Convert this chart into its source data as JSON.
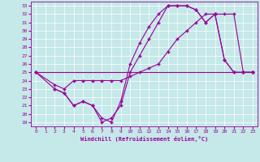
{
  "xlabel": "Windchill (Refroidissement éolien,°C)",
  "background_color": "#c5e8e8",
  "line_color": "#990099",
  "xlim": [
    -0.5,
    23.5
  ],
  "ylim": [
    18.5,
    33.5
  ],
  "yticks": [
    19,
    20,
    21,
    22,
    23,
    24,
    25,
    26,
    27,
    28,
    29,
    30,
    31,
    32,
    33
  ],
  "xticks": [
    0,
    1,
    2,
    3,
    4,
    5,
    6,
    7,
    8,
    9,
    10,
    11,
    12,
    13,
    14,
    15,
    16,
    17,
    18,
    19,
    20,
    21,
    22,
    23
  ],
  "line1_x": [
    0,
    23
  ],
  "line1_y": [
    25,
    25
  ],
  "line2_x": [
    0,
    2,
    3,
    4,
    5,
    6,
    7,
    8,
    9,
    10,
    11,
    12,
    13,
    14,
    15,
    16,
    17,
    18,
    19,
    20,
    21,
    22,
    23
  ],
  "line2_y": [
    25,
    23.5,
    23,
    24,
    24,
    24,
    24,
    24,
    24,
    24.5,
    25,
    25.5,
    26,
    27.5,
    29,
    30,
    31,
    32,
    32,
    32,
    32,
    25,
    25
  ],
  "line3_x": [
    2,
    3,
    4,
    5,
    6,
    7,
    8,
    9,
    10,
    11,
    12,
    13,
    14,
    15,
    16,
    17,
    18,
    19,
    20,
    21,
    22,
    23
  ],
  "line3_y": [
    23,
    22.5,
    21,
    21.5,
    21,
    19,
    19.5,
    21,
    25,
    27,
    29,
    31,
    33,
    33,
    33,
    32.5,
    31,
    32,
    26.5,
    25,
    25,
    25
  ],
  "line4_x": [
    0,
    2,
    3,
    4,
    5,
    6,
    7,
    8,
    9,
    10,
    11,
    12,
    13,
    14,
    15,
    16,
    17,
    18,
    19,
    20,
    21,
    22,
    23
  ],
  "line4_y": [
    25,
    23,
    22.5,
    21,
    21.5,
    21,
    19.5,
    19,
    21.5,
    26,
    28.5,
    30.5,
    32,
    33,
    33,
    33,
    32.5,
    31,
    32,
    26.5,
    25,
    25,
    25
  ]
}
